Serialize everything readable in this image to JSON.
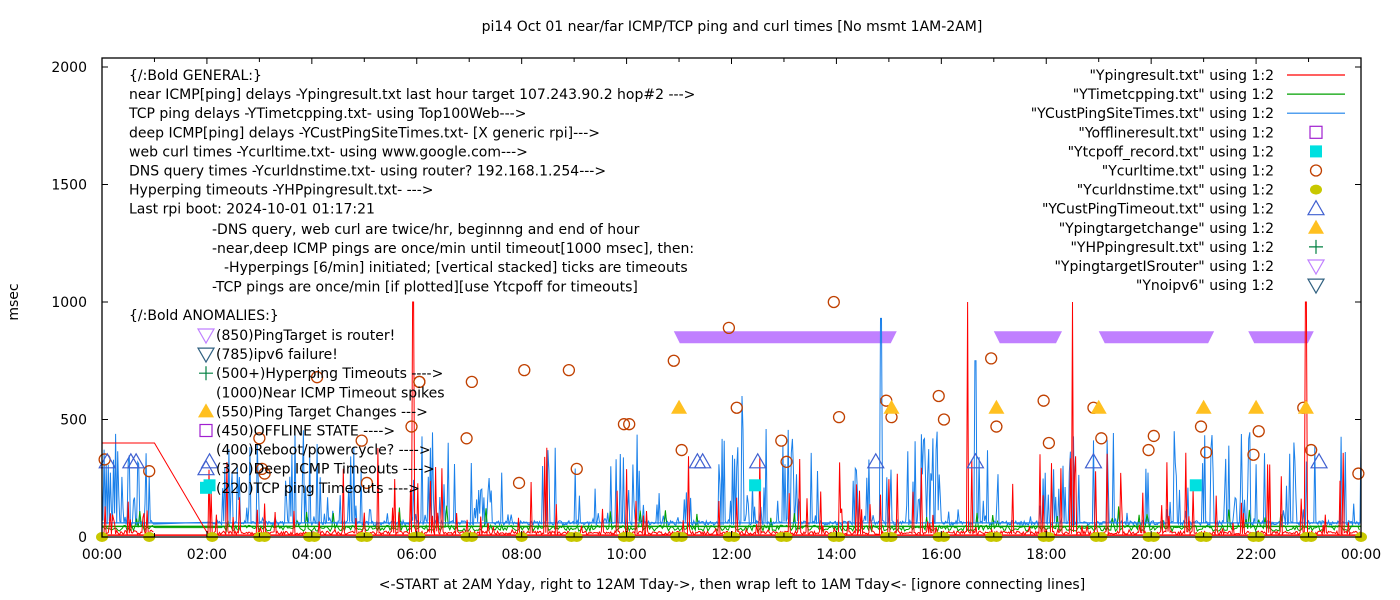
{
  "chart_data": {
    "type": "line",
    "title": "pi14 Oct 01  near/far ICMP/TCP ping and curl times [No msmt 1AM-2AM]",
    "xlabel": "<-START at 2AM Yday, right to 12AM Tday->, then wrap left to 1AM Tday<- [ignore connecting lines]",
    "ylabel": "msec",
    "xlim_hours": [
      0,
      24
    ],
    "ylim": [
      0,
      2000
    ],
    "x_ticks": [
      "00:00",
      "02:00",
      "04:00",
      "06:00",
      "08:00",
      "10:00",
      "12:00",
      "14:00",
      "16:00",
      "18:00",
      "20:00",
      "22:00",
      "00:00"
    ],
    "y_ticks": [
      "0",
      "500",
      "1000",
      "1500",
      "2000"
    ],
    "grid": false,
    "legend_position": "top-right",
    "legend": [
      {
        "label": "\"Ypingresult.txt\" using 1:2",
        "style": "line",
        "color": "#ff0000"
      },
      {
        "label": "\"YTimetcpping.txt\" using 1:2",
        "style": "line",
        "color": "#00a000"
      },
      {
        "label": "\"YCustPingSiteTimes.txt\" using 1:2",
        "style": "line",
        "color": "#1a80ea"
      },
      {
        "label": "\"Yofflineresult.txt\" using 1:2",
        "style": "open-square",
        "color": "#a020d0"
      },
      {
        "label": "\"Ytcpoff_record.txt\" using 1:2",
        "style": "filled-square",
        "color": "#00e0e0"
      },
      {
        "label": "\"Ycurltime.txt\" using 1:2",
        "style": "open-circle",
        "color": "#c04000"
      },
      {
        "label": "\"Ycurldnstime.txt\" using 1:2",
        "style": "filled-circle",
        "color": "#c8c800"
      },
      {
        "label": "\"YCustPingTimeout.txt\" using 1:2",
        "style": "open-triangle",
        "color": "#4060d0"
      },
      {
        "label": "\"Ypingtargetchange\" using 1:2",
        "style": "filled-triangle",
        "color": "#ffc020"
      },
      {
        "label": "\"YHPpingresult.txt\" using 1:2",
        "style": "plus",
        "color": "#008040"
      },
      {
        "label": "\"YpingtargetISrouter\" using 1:2",
        "style": "open-down-triangle",
        "color": "#c080ff"
      },
      {
        "label": "\"Ynoipv6\" using 1:2",
        "style": "open-down-triangle",
        "color": "#306080"
      }
    ],
    "annotations_general": [
      "{/:Bold GENERAL:}",
      "near ICMP[ping] delays -Ypingresult.txt last hour target 107.243.90.2 hop#2 --->",
      "TCP ping delays -YTimetcpping.txt- using Top100Web--->",
      "deep ICMP[ping] delays -YCustPingSiteTimes.txt- [X generic rpi]--->",
      "web curl times -Ycurltime.txt- using www.google.com--->",
      "DNS query times -Ycurldnstime.txt- using router? 192.168.1.254--->",
      "Hyperping timeouts -YHPpingresult.txt- --->",
      "Last rpi boot: 2024-10-01 01:17:21"
    ],
    "annotations_notes": [
      "-DNS query, web curl are twice/hr, beginnng and end of hour",
      "-near,deep ICMP pings are once/min until timeout[1000 msec], then:",
      "  -Hyperpings [6/min] initiated; [vertical stacked] ticks are timeouts",
      "-TCP pings are once/min [if plotted][use Ytcpoff for timeouts]"
    ],
    "annotations_anomalies_header": "{/:Bold ANOMALIES:}",
    "annotations_anomalies": [
      {
        "marker": "open-down-triangle-purple",
        "text": "(850)PingTarget is router!"
      },
      {
        "marker": "open-down-triangle-navy",
        "text": "(785)ipv6 failure!"
      },
      {
        "marker": "plus",
        "text": "(500+)Hyperping Timeouts ---->"
      },
      {
        "marker": "none",
        "text": "(1000)Near ICMP Timeout spikes"
      },
      {
        "marker": "filled-triangle",
        "text": "(550)Ping Target Changes --->"
      },
      {
        "marker": "open-square",
        "text": "(450)OFFLINE STATE ---->"
      },
      {
        "marker": "none",
        "text": "(400)Reboot/powercycle? ---->"
      },
      {
        "marker": "open-triangle",
        "text": "(320)Deep ICMP Timeouts ---->"
      },
      {
        "marker": "filled-square",
        "text": "(220)TCP ping Timeouts ---->"
      }
    ],
    "series": [
      {
        "name": "Ycurltime.txt",
        "type": "scatter",
        "points": [
          [
            0.05,
            330
          ],
          [
            0.9,
            280
          ],
          [
            3.0,
            420
          ],
          [
            3.05,
            290
          ],
          [
            3.1,
            270
          ],
          [
            4.1,
            680
          ],
          [
            4.95,
            410
          ],
          [
            5.05,
            230
          ],
          [
            5.9,
            470
          ],
          [
            6.05,
            660
          ],
          [
            6.05,
            660
          ],
          [
            6.95,
            420
          ],
          [
            7.05,
            660
          ],
          [
            7.95,
            230
          ],
          [
            8.05,
            710
          ],
          [
            8.9,
            710
          ],
          [
            9.05,
            290
          ],
          [
            9.95,
            480
          ],
          [
            10.05,
            480
          ],
          [
            10.9,
            750
          ],
          [
            11.05,
            370
          ],
          [
            11.95,
            890
          ],
          [
            12.1,
            550
          ],
          [
            12.95,
            410
          ],
          [
            13.05,
            320
          ],
          [
            13.95,
            1000
          ],
          [
            14.05,
            510
          ],
          [
            14.95,
            580
          ],
          [
            15.05,
            510
          ],
          [
            15.95,
            600
          ],
          [
            16.05,
            500
          ],
          [
            16.95,
            760
          ],
          [
            17.05,
            470
          ],
          [
            17.95,
            580
          ],
          [
            18.05,
            400
          ],
          [
            18.9,
            550
          ],
          [
            19.05,
            420
          ],
          [
            19.95,
            370
          ],
          [
            20.05,
            430
          ],
          [
            20.95,
            470
          ],
          [
            21.05,
            360
          ],
          [
            21.95,
            350
          ],
          [
            22.05,
            450
          ],
          [
            22.9,
            550
          ],
          [
            23.05,
            370
          ],
          [
            23.95,
            270
          ]
        ]
      },
      {
        "name": "Ycurldnstime.txt",
        "type": "scatter",
        "points": [
          [
            0.0,
            0
          ],
          [
            0.9,
            0
          ],
          [
            2.1,
            0
          ],
          [
            3.0,
            0
          ],
          [
            3.1,
            0
          ],
          [
            3.95,
            0
          ],
          [
            4.05,
            0
          ],
          [
            4.95,
            0
          ],
          [
            5.05,
            0
          ],
          [
            5.95,
            0
          ],
          [
            6.05,
            0
          ],
          [
            6.95,
            0
          ],
          [
            7.05,
            0
          ],
          [
            8.0,
            0
          ],
          [
            8.95,
            0
          ],
          [
            9.05,
            0
          ],
          [
            9.95,
            0
          ],
          [
            10.05,
            0
          ],
          [
            10.95,
            0
          ],
          [
            11.05,
            0
          ],
          [
            11.95,
            0
          ],
          [
            12.05,
            0
          ],
          [
            12.95,
            0
          ],
          [
            13.05,
            0
          ],
          [
            13.95,
            0
          ],
          [
            14.05,
            0
          ],
          [
            14.95,
            0
          ],
          [
            15.05,
            0
          ],
          [
            15.95,
            0
          ],
          [
            16.05,
            0
          ],
          [
            16.95,
            0
          ],
          [
            17.05,
            0
          ],
          [
            17.95,
            0
          ],
          [
            18.05,
            0
          ],
          [
            18.95,
            0
          ],
          [
            19.05,
            0
          ],
          [
            19.95,
            0
          ],
          [
            20.05,
            0
          ],
          [
            20.95,
            0
          ],
          [
            21.05,
            0
          ],
          [
            21.95,
            0
          ],
          [
            22.05,
            0
          ],
          [
            22.95,
            0
          ],
          [
            23.05,
            0
          ],
          [
            24.0,
            0
          ]
        ]
      },
      {
        "name": "YCustPingTimeout.txt",
        "type": "scatter",
        "points": [
          [
            0.1,
            320
          ],
          [
            0.55,
            320
          ],
          [
            0.65,
            320
          ],
          [
            2.05,
            320
          ],
          [
            11.35,
            320
          ],
          [
            11.45,
            320
          ],
          [
            12.5,
            320
          ],
          [
            14.75,
            320
          ],
          [
            16.65,
            320
          ],
          [
            18.9,
            320
          ],
          [
            23.2,
            320
          ]
        ]
      },
      {
        "name": "Ypingtargetchange",
        "type": "scatter",
        "points": [
          [
            11.0,
            550
          ],
          [
            15.05,
            550
          ],
          [
            17.05,
            550
          ],
          [
            19.0,
            550
          ],
          [
            21.0,
            550
          ],
          [
            22.0,
            550
          ],
          [
            22.95,
            550
          ]
        ]
      },
      {
        "name": "Ytcpoff_record.txt",
        "type": "scatter",
        "points": [
          [
            2.05,
            220
          ],
          [
            12.45,
            220
          ],
          [
            20.85,
            220
          ]
        ]
      },
      {
        "name": "Yofflineresult.txt",
        "type": "scatter",
        "points": []
      },
      {
        "name": "YpingtargetISrouter",
        "type": "band",
        "value": 850,
        "ranges": [
          [
            10.9,
            15.15
          ],
          [
            17.0,
            18.3
          ],
          [
            19.0,
            21.2
          ],
          [
            21.85,
            23.1
          ]
        ]
      },
      {
        "name": "Ypingresult.txt",
        "type": "line",
        "baseline": 20,
        "early_plateau": {
          "from": 0.0,
          "to": 1.0,
          "value": 400,
          "descends_to": 2.0
        },
        "spikes_to_1000": [
          5.93,
          16.5,
          18.5,
          22.95
        ]
      },
      {
        "name": "YTimetcpping.txt",
        "type": "line",
        "typical": 40
      },
      {
        "name": "YCustPingSiteTimes.txt",
        "type": "line",
        "typical": 60,
        "peaks": [
          [
            14.85,
            930
          ],
          [
            16.65,
            750
          ],
          [
            12.2,
            600
          ],
          [
            8.5,
            370
          ]
        ]
      }
    ]
  }
}
